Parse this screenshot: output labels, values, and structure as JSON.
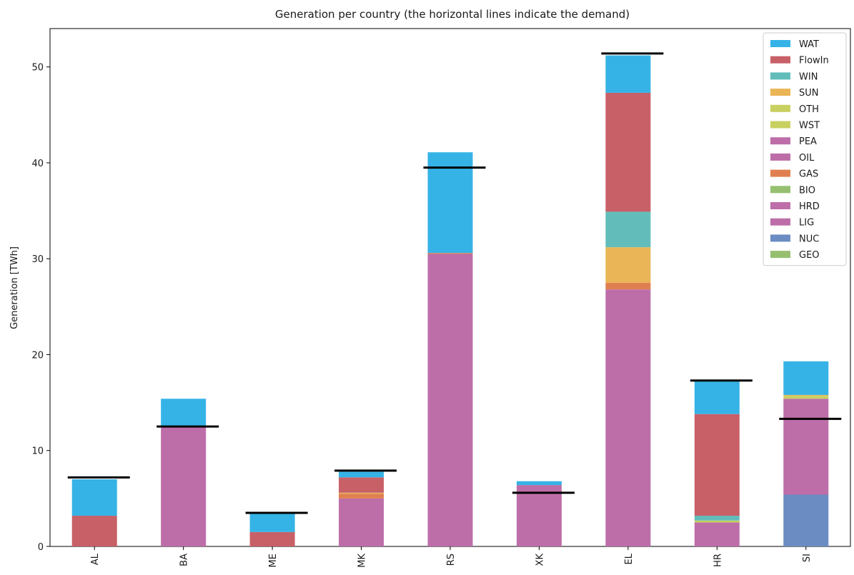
{
  "chart_data": {
    "type": "bar",
    "stacked": true,
    "title": "Generation per country (the horizontal lines indicate the demand)",
    "xlabel": "",
    "ylabel": "Generation [TWh]",
    "ylim": [
      0,
      54
    ],
    "yticks": [
      0,
      10,
      20,
      30,
      40,
      50
    ],
    "grid": false,
    "legend_position": "top-right",
    "categories": [
      "AL",
      "BA",
      "ME",
      "MK",
      "RS",
      "XK",
      "EL",
      "HR",
      "SI"
    ],
    "series": [
      {
        "name": "GEO",
        "color": "#96c070",
        "values": [
          0,
          0,
          0,
          0,
          0,
          0,
          0,
          0,
          0
        ]
      },
      {
        "name": "NUC",
        "color": "#6b8cc2",
        "values": [
          0,
          0,
          0,
          0,
          0,
          0,
          0,
          0,
          5.4
        ]
      },
      {
        "name": "LIG",
        "color": "#bd6ea8",
        "values": [
          0,
          12.4,
          0,
          5.0,
          30.5,
          6.4,
          26.8,
          2.5,
          10.0
        ]
      },
      {
        "name": "HRD",
        "color": "#bd6ea8",
        "values": [
          0,
          0,
          0,
          0,
          0,
          0,
          0,
          0,
          0
        ]
      },
      {
        "name": "BIO",
        "color": "#96c070",
        "values": [
          0,
          0,
          0,
          0,
          0,
          0,
          0,
          0,
          0
        ]
      },
      {
        "name": "GAS",
        "color": "#e08050",
        "values": [
          0,
          0,
          0,
          0.5,
          0.1,
          0,
          0.7,
          0,
          0
        ]
      },
      {
        "name": "OIL",
        "color": "#bd6ea8",
        "values": [
          0,
          0,
          0,
          0,
          0,
          0,
          0,
          0,
          0
        ]
      },
      {
        "name": "PEA",
        "color": "#bd6ea8",
        "values": [
          0,
          0,
          0,
          0,
          0,
          0,
          0,
          0,
          0
        ]
      },
      {
        "name": "WST",
        "color": "#c8d060",
        "values": [
          0,
          0,
          0,
          0,
          0,
          0,
          0,
          0,
          0
        ]
      },
      {
        "name": "OTH",
        "color": "#c8d060",
        "values": [
          0,
          0,
          0,
          0,
          0,
          0,
          0,
          0.2,
          0.3
        ]
      },
      {
        "name": "SUN",
        "color": "#eab556",
        "values": [
          0,
          0,
          0,
          0.1,
          0,
          0,
          3.7,
          0,
          0.1
        ]
      },
      {
        "name": "WIN",
        "color": "#62bdba",
        "values": [
          0,
          0,
          0,
          0,
          0,
          0,
          3.7,
          0.5,
          0
        ]
      },
      {
        "name": "FlowIn",
        "color": "#c86068",
        "values": [
          3.2,
          0,
          1.5,
          1.6,
          0,
          0,
          12.4,
          10.6,
          0
        ]
      },
      {
        "name": "WAT",
        "color": "#36b3e6",
        "values": [
          3.8,
          3.0,
          2.0,
          0.6,
          10.5,
          0.4,
          3.9,
          3.4,
          3.5
        ]
      }
    ],
    "demand": [
      7.2,
      12.5,
      3.5,
      7.9,
      39.5,
      5.6,
      51.4,
      17.3,
      13.3
    ]
  }
}
